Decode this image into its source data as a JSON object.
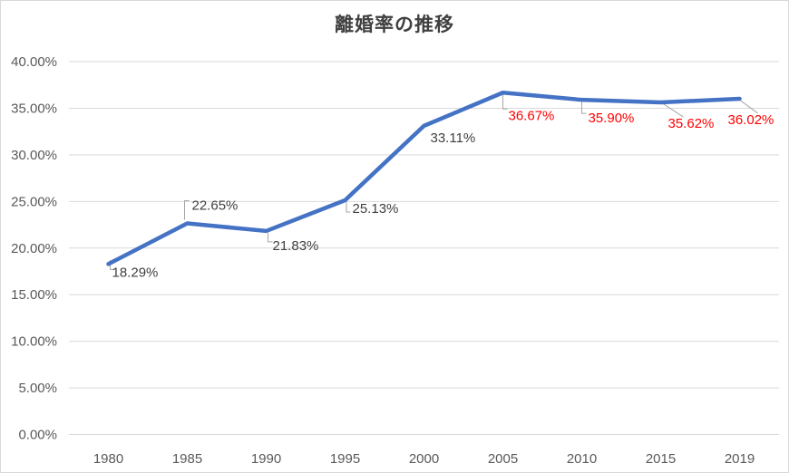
{
  "chart": {
    "title": "離婚率の推移"
  },
  "chart_data": {
    "type": "line",
    "title": "離婚率の推移",
    "categories": [
      "1980",
      "1985",
      "1990",
      "1995",
      "2000",
      "2005",
      "2010",
      "2015",
      "2019"
    ],
    "values": [
      18.29,
      22.65,
      21.83,
      25.13,
      33.11,
      36.67,
      35.9,
      35.62,
      36.02
    ],
    "data_labels": [
      "18.29%",
      "22.65%",
      "21.83%",
      "25.13%",
      "33.11%",
      "36.67%",
      "35.90%",
      "35.62%",
      "36.02%"
    ],
    "data_label_colors": [
      "#404040",
      "#404040",
      "#404040",
      "#404040",
      "#404040",
      "#FF0000",
      "#FF0000",
      "#FF0000",
      "#FF0000"
    ],
    "y_tick_labels": [
      "0.00%",
      "5.00%",
      "10.00%",
      "15.00%",
      "20.00%",
      "25.00%",
      "30.00%",
      "35.00%",
      "40.00%"
    ],
    "ylim": [
      0,
      40
    ],
    "y_step": 5,
    "xlabel": "",
    "ylabel": "",
    "grid": true,
    "legend_position": "none",
    "line_color": "#4472C4",
    "grid_color": "#D9D9D9",
    "axis_text_color": "#595959",
    "leader_line_color": "#A6A6A6"
  }
}
